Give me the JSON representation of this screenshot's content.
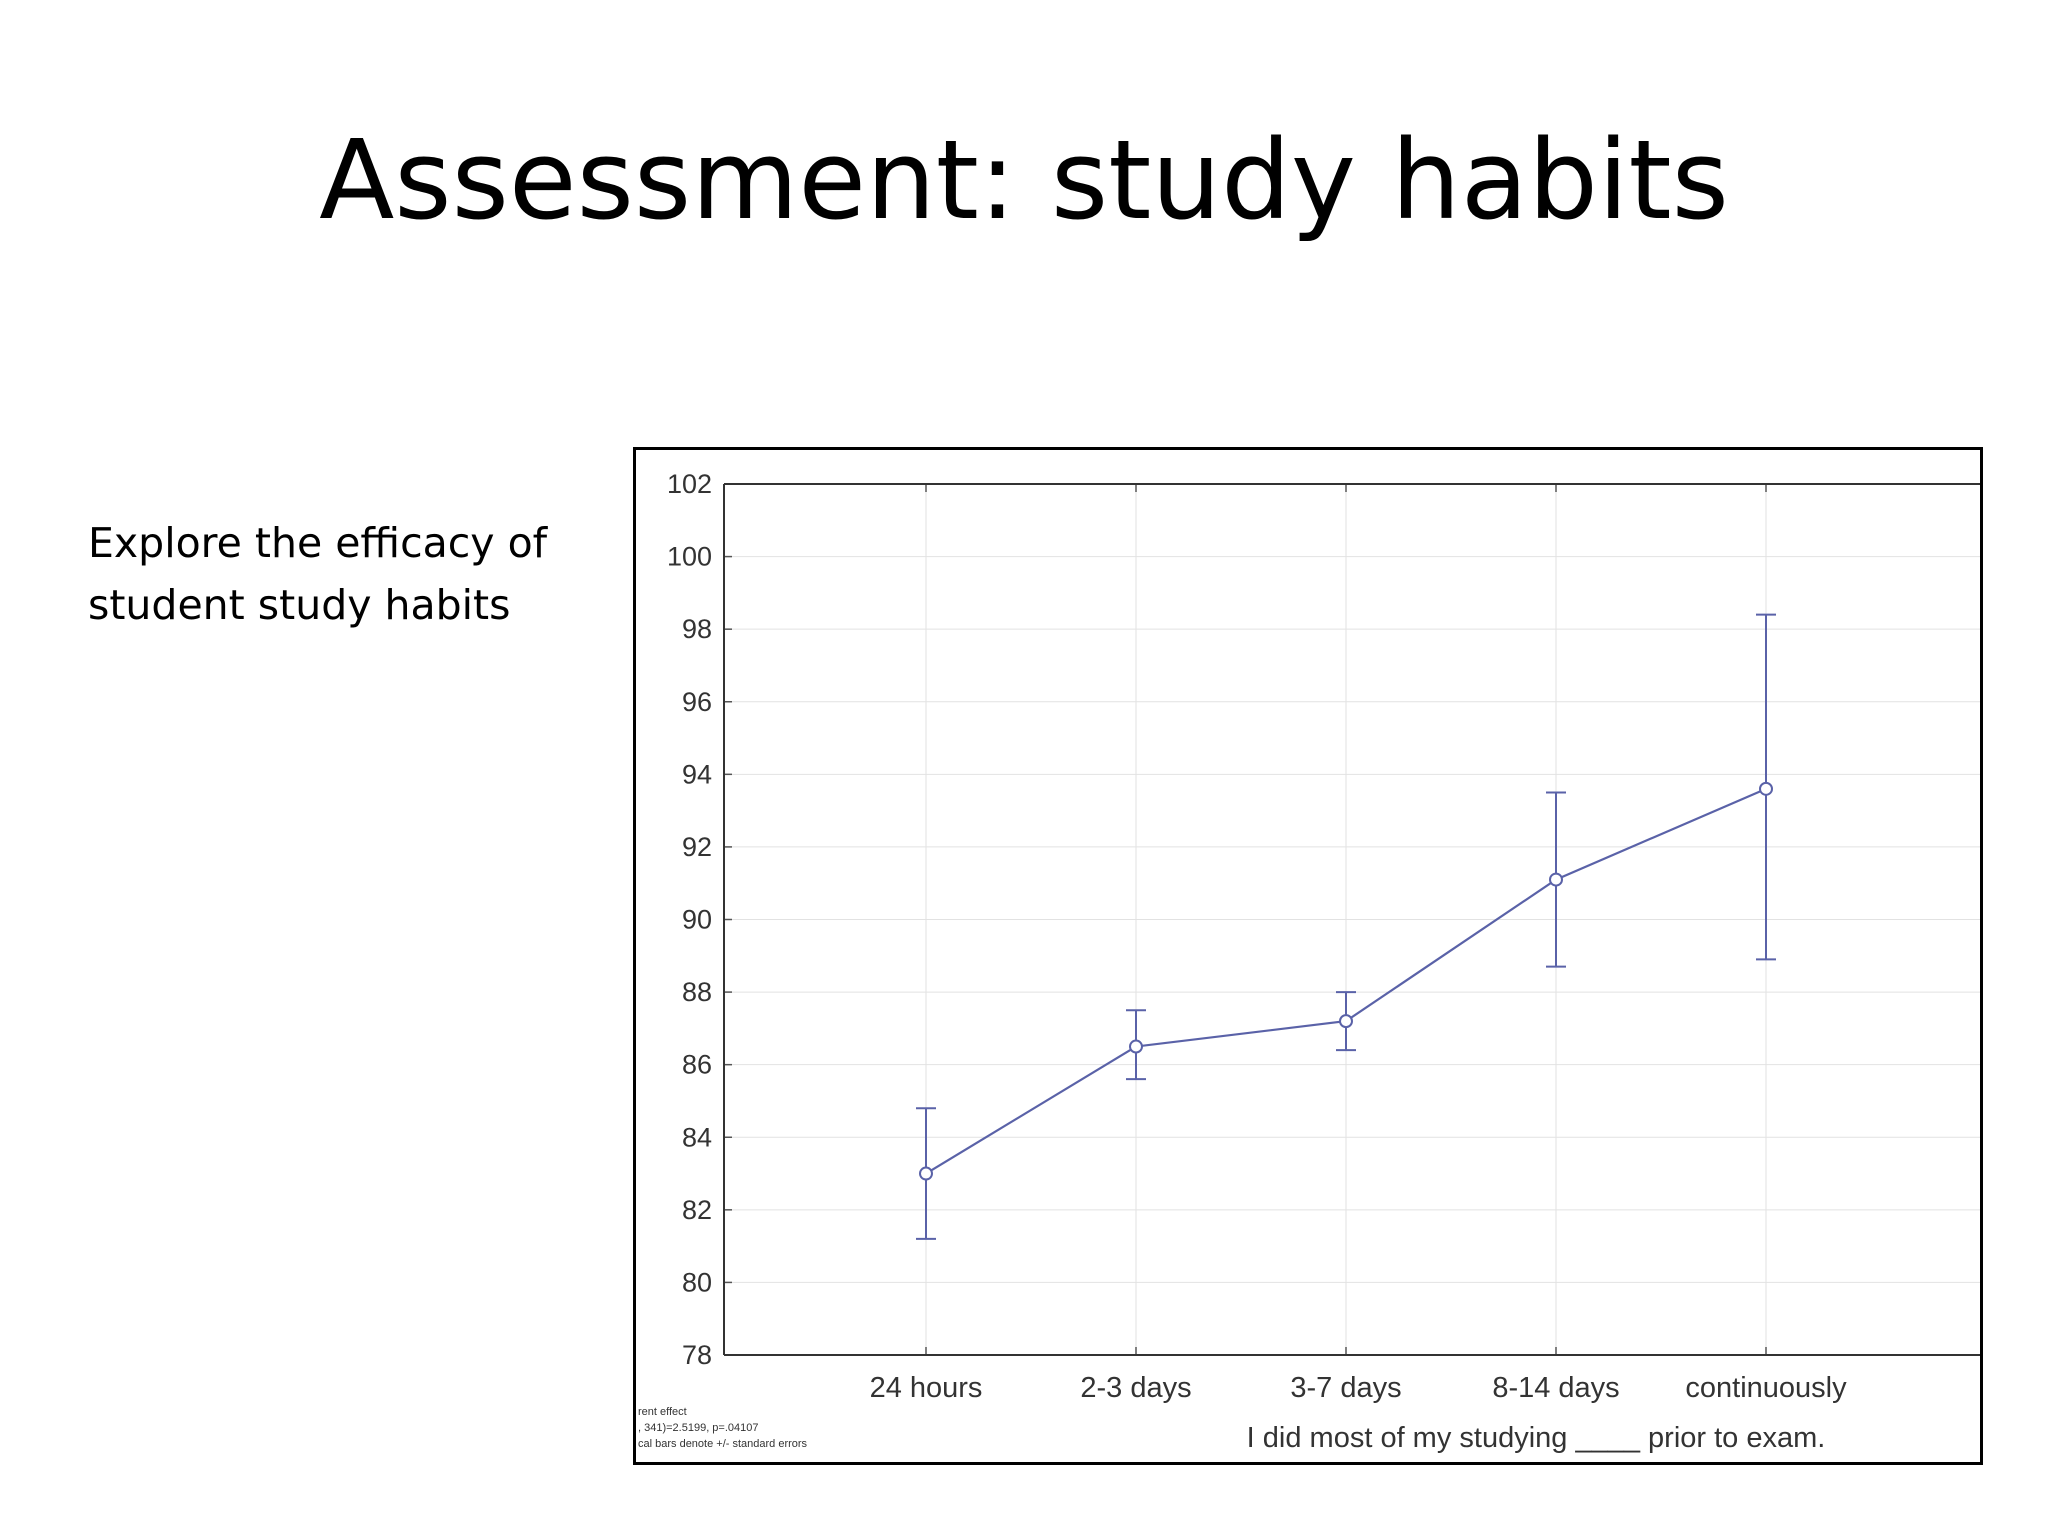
{
  "slide": {
    "title": "Assessment: study habits",
    "body": "Explore the efficacy of student study habits"
  },
  "chart_data": {
    "type": "line",
    "title": "",
    "xlabel": "I did most of my studying ____ prior to exam.",
    "ylabel": "",
    "categories": [
      "24 hours",
      "2-3 days",
      "3-7 days",
      "8-14 days",
      "continuously"
    ],
    "series": [
      {
        "values": [
          83.0,
          86.5,
          87.2,
          91.1,
          93.6
        ],
        "error_low": [
          81.2,
          85.6,
          86.4,
          88.7,
          88.9
        ],
        "error_high": [
          84.8,
          87.5,
          88.0,
          93.5,
          98.4
        ]
      }
    ],
    "ylim": [
      78,
      102
    ],
    "yticks": [
      78,
      80,
      82,
      84,
      86,
      88,
      90,
      92,
      94,
      96,
      98,
      100,
      102
    ],
    "grid": true,
    "line_color": "#5a62a8",
    "footnote": [
      "rent effect",
      ", 341)=2.5199, p=.04107",
      "cal bars denote +/- standard errors"
    ]
  }
}
